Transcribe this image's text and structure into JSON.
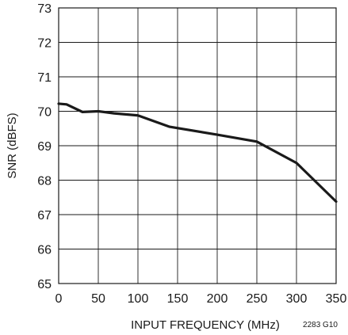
{
  "chart_data": {
    "type": "line",
    "title": "",
    "xlabel": "INPUT FREQUENCY (MHz)",
    "ylabel": "SNR (dBFS)",
    "xlim": [
      0,
      350
    ],
    "ylim": [
      65,
      73
    ],
    "xticks": [
      0,
      50,
      100,
      150,
      200,
      250,
      300,
      350
    ],
    "yticks": [
      65,
      66,
      67,
      68,
      69,
      70,
      71,
      72,
      73
    ],
    "grid": true,
    "series": [
      {
        "x": [
          0,
          10,
          30,
          50,
          70,
          100,
          140,
          200,
          250,
          300,
          350
        ],
        "y": [
          70.22,
          70.2,
          69.98,
          70.0,
          69.94,
          69.88,
          69.55,
          69.32,
          69.12,
          68.5,
          67.38
        ]
      }
    ],
    "figure_code": "2283 G10",
    "colors": {
      "line": "#1a1a1a",
      "grid": "#1a1a1a",
      "background": "#ffffff"
    }
  }
}
